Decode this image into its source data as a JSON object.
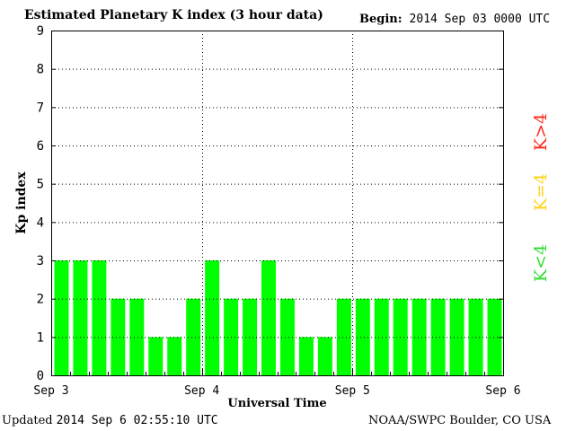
{
  "header": {
    "title": "Estimated Planetary K index (3 hour data)",
    "begin_label": "Begin:",
    "begin_value": "2014 Sep 03 0000 UTC"
  },
  "footer": {
    "updated_label": "Updated",
    "updated_value": "2014 Sep  6 02:55:10 UTC",
    "credit": "NOAA/SWPC Boulder, CO USA"
  },
  "legend": [
    {
      "label": "K>4",
      "color": "#ff2a1a"
    },
    {
      "label": "K=4",
      "color": "#ffd21a"
    },
    {
      "label": "K<4",
      "color": "#33dd33"
    }
  ],
  "chart_data": {
    "type": "bar",
    "title": "Estimated Planetary K index (3 hour data)",
    "xlabel": "Universal Time",
    "ylabel": "Kp index",
    "ylim": [
      0,
      9
    ],
    "yticks": [
      0,
      1,
      2,
      3,
      4,
      5,
      6,
      7,
      8,
      9
    ],
    "xticklabels": [
      "Sep 3",
      "Sep 4",
      "Sep 5",
      "Sep 6"
    ],
    "grid": true,
    "bar_color": "#00ff00",
    "values": [
      3,
      3,
      3,
      2,
      2,
      1,
      1,
      2,
      3,
      2,
      2,
      3,
      2,
      1,
      1,
      2,
      2,
      2,
      2,
      2,
      2,
      2,
      2,
      2
    ]
  }
}
